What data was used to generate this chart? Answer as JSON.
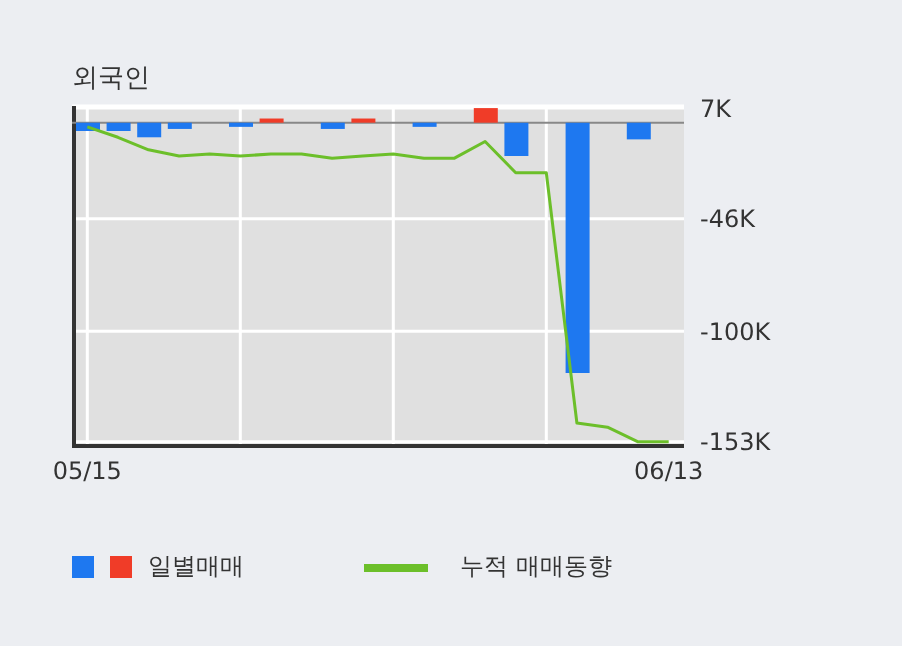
{
  "chart_data": {
    "type": "bar",
    "title": "외국인",
    "categories": [
      "05/15",
      null,
      null,
      null,
      null,
      null,
      null,
      null,
      null,
      null,
      null,
      null,
      null,
      null,
      null,
      null,
      null,
      null,
      null,
      "06/13"
    ],
    "series": [
      {
        "name": "일별매매",
        "colors": [
          "#1e78f0",
          "#1e78f0",
          "#1e78f0",
          "#1e78f0",
          null,
          "#1e78f0",
          "#f03c28",
          null,
          "#1e78f0",
          "#f03c28",
          null,
          "#1e78f0",
          null,
          "#f03c28",
          "#1e78f0",
          null,
          "#1e78f0",
          null,
          "#1e78f0",
          null
        ],
        "values": [
          -4,
          -4,
          -7,
          -3,
          null,
          -2,
          2,
          null,
          -3,
          2,
          null,
          -2,
          null,
          7,
          -16,
          null,
          -120,
          null,
          -8,
          null
        ]
      },
      {
        "name": "누적 매매동향",
        "type": "line",
        "color": "#6cbf2a",
        "values": [
          -2,
          -7,
          -13,
          -16,
          -15,
          -16,
          -15,
          -15,
          -17,
          -16,
          -15,
          -17,
          -17,
          -9,
          -24,
          -24,
          -144,
          -146,
          -153,
          -153
        ]
      }
    ],
    "ylim": [
      -155,
      8
    ],
    "yticks": [
      {
        "value": 7,
        "label": "7K"
      },
      {
        "value": -46,
        "label": "-46K"
      },
      {
        "value": -100,
        "label": "-100K"
      },
      {
        "value": -153,
        "label": "-153K"
      }
    ],
    "ref_lines": [
      {
        "axis": "y",
        "value": 0,
        "color": "#888888"
      }
    ],
    "grid": true,
    "legend": "bottom",
    "marker": "none",
    "line_style": "solid"
  }
}
